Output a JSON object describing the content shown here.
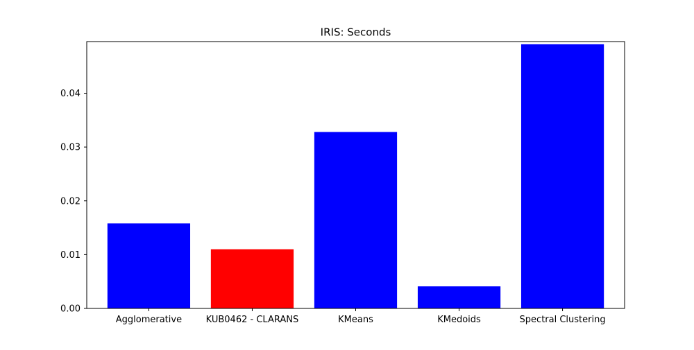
{
  "chart_data": {
    "type": "bar",
    "title": "IRIS: Seconds",
    "xlabel": "",
    "ylabel": "",
    "categories": [
      "Agglomerative",
      "KUB0462 - CLARANS",
      "KMeans",
      "KMedoids",
      "Spectral Clustering"
    ],
    "values": [
      0.0158,
      0.011,
      0.0328,
      0.0041,
      0.0491
    ],
    "bar_colors": [
      "#0000ff",
      "#ff0000",
      "#0000ff",
      "#0000ff",
      "#0000ff"
    ],
    "ylim": [
      0,
      0.0496
    ],
    "yticks": [
      0.0,
      0.01,
      0.02,
      0.03,
      0.04
    ],
    "ytick_labels": [
      "0.00",
      "0.01",
      "0.02",
      "0.03",
      "0.04"
    ],
    "grid": false,
    "legend": "none"
  }
}
